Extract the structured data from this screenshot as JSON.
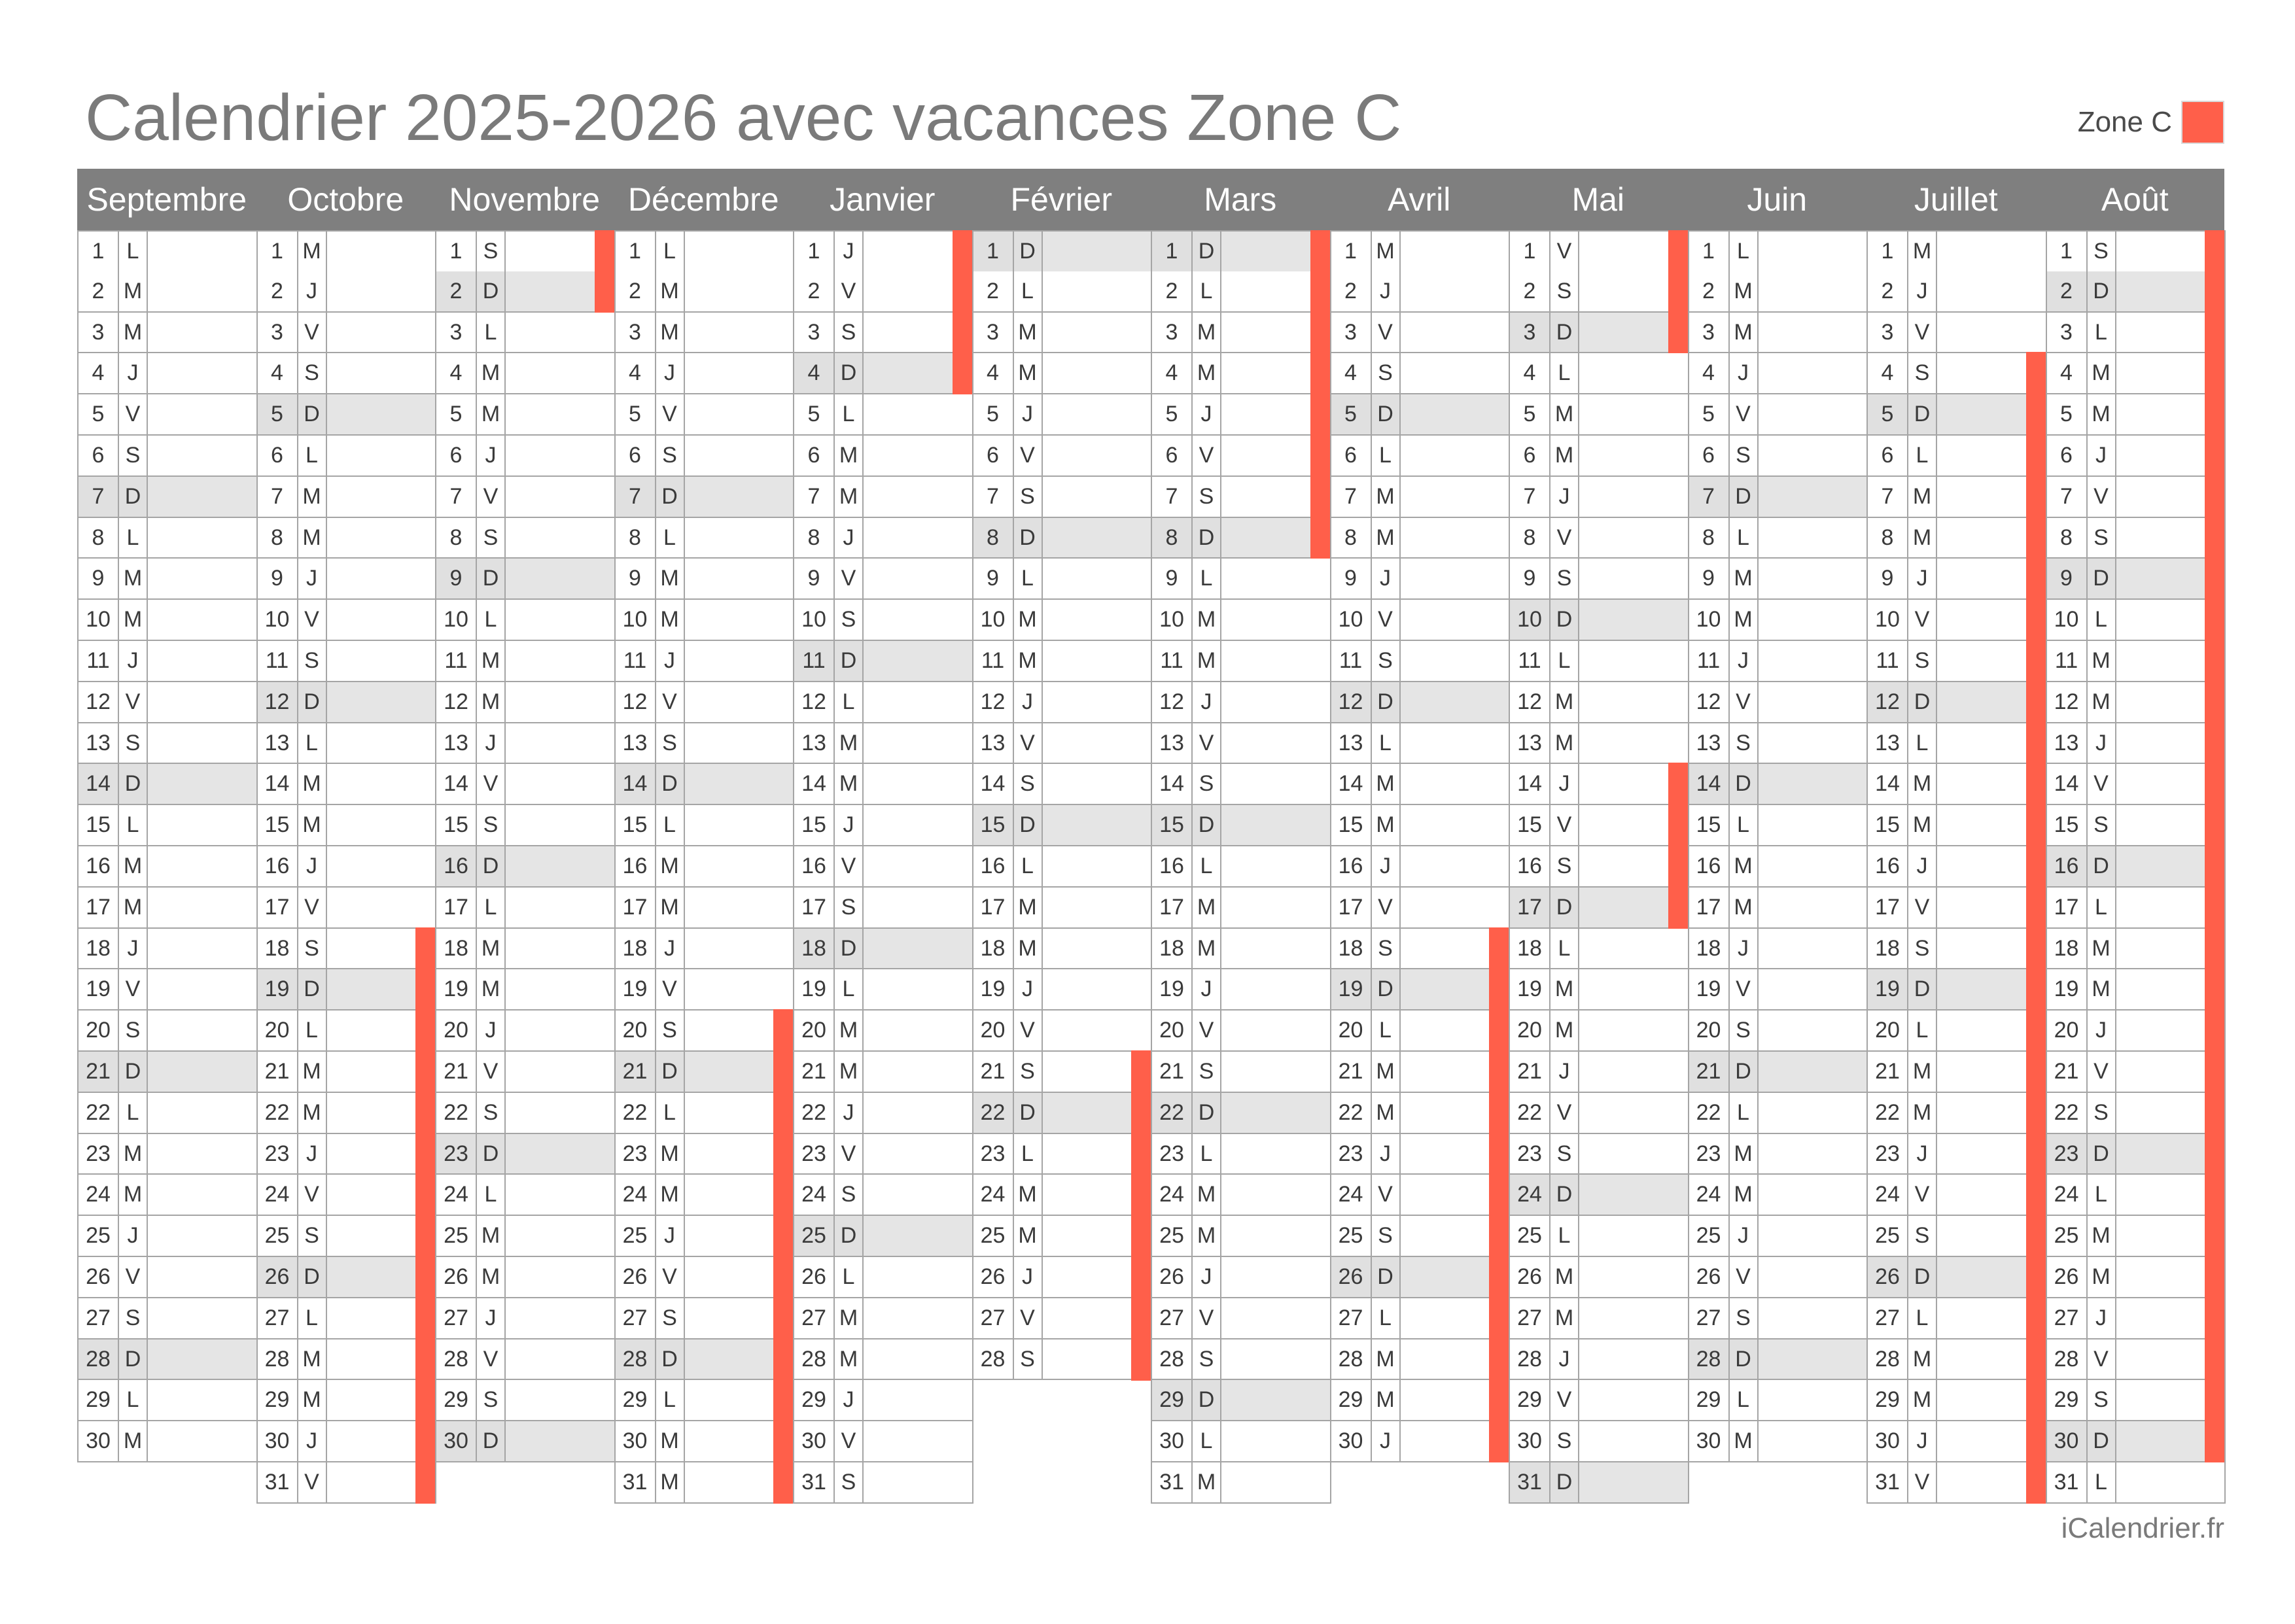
{
  "title": "Calendrier 2025-2026 avec vacances Zone C",
  "legend": {
    "label": "Zone C",
    "color": "#ff5f4a"
  },
  "credit": "iCalendrier.fr",
  "colors": {
    "header": "#7f7f7f",
    "weekend": "#e5e5e5",
    "holiday": "#ff5f4a"
  },
  "months": [
    {
      "name": "Septembre",
      "first_weekday": 0,
      "days": 30,
      "holidays": []
    },
    {
      "name": "Octobre",
      "first_weekday": 2,
      "days": 31,
      "holidays": [
        18,
        19,
        20,
        21,
        22,
        23,
        24,
        25,
        26,
        27,
        28,
        29,
        30,
        31
      ]
    },
    {
      "name": "Novembre",
      "first_weekday": 5,
      "days": 30,
      "holidays": [
        1,
        2
      ]
    },
    {
      "name": "Décembre",
      "first_weekday": 0,
      "days": 31,
      "holidays": [
        20,
        21,
        22,
        23,
        24,
        25,
        26,
        27,
        28,
        29,
        30,
        31
      ]
    },
    {
      "name": "Janvier",
      "first_weekday": 3,
      "days": 31,
      "holidays": [
        1,
        2,
        3,
        4
      ]
    },
    {
      "name": "Février",
      "first_weekday": 6,
      "days": 28,
      "holidays": [
        21,
        22,
        23,
        24,
        25,
        26,
        27,
        28
      ]
    },
    {
      "name": "Mars",
      "first_weekday": 6,
      "days": 31,
      "holidays": [
        1,
        2,
        3,
        4,
        5,
        6,
        7,
        8
      ]
    },
    {
      "name": "Avril",
      "first_weekday": 2,
      "days": 30,
      "holidays": [
        18,
        19,
        20,
        21,
        22,
        23,
        24,
        25,
        26,
        27,
        28,
        29,
        30
      ]
    },
    {
      "name": "Mai",
      "first_weekday": 4,
      "days": 31,
      "holidays": [
        1,
        2,
        3,
        14,
        15,
        16,
        17
      ]
    },
    {
      "name": "Juin",
      "first_weekday": 0,
      "days": 30,
      "holidays": []
    },
    {
      "name": "Juillet",
      "first_weekday": 2,
      "days": 31,
      "holidays": [
        4,
        5,
        6,
        7,
        8,
        9,
        10,
        11,
        12,
        13,
        14,
        15,
        16,
        17,
        18,
        19,
        20,
        21,
        22,
        23,
        24,
        25,
        26,
        27,
        28,
        29,
        30,
        31
      ]
    },
    {
      "name": "Août",
      "first_weekday": 5,
      "days": 31,
      "holidays": [
        1,
        2,
        3,
        4,
        5,
        6,
        7,
        8,
        9,
        10,
        11,
        12,
        13,
        14,
        15,
        16,
        17,
        18,
        19,
        20,
        21,
        22,
        23,
        24,
        25,
        26,
        27,
        28,
        29,
        30
      ]
    }
  ],
  "weekday_letters": [
    "L",
    "M",
    "M",
    "J",
    "V",
    "S",
    "D"
  ]
}
